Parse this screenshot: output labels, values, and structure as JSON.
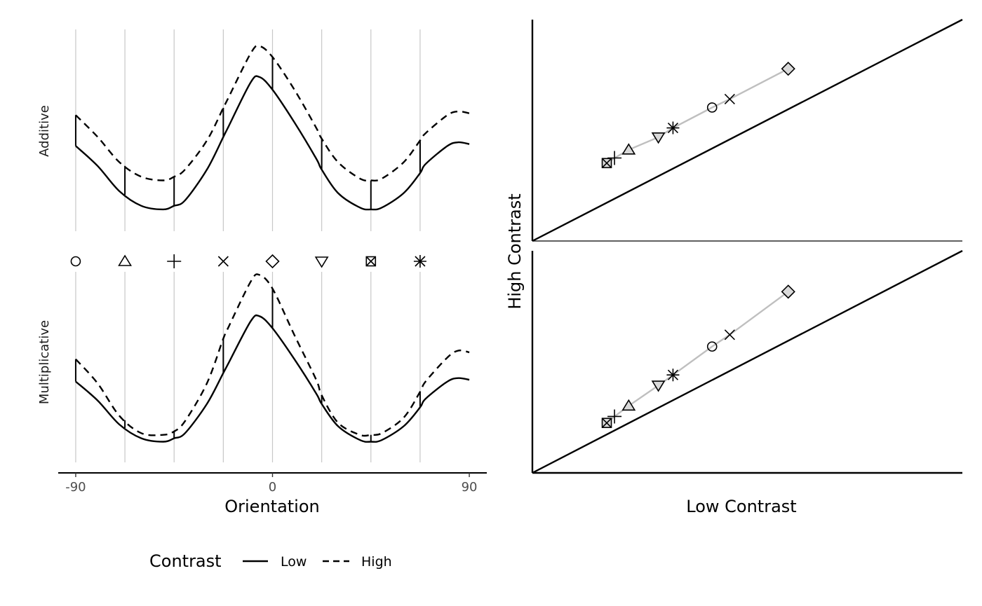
{
  "chart_data": [
    {
      "type": "line",
      "panels": [
        {
          "strip_label": "Additive",
          "series": [
            {
              "name": "Low",
              "linetype": "solid",
              "x": [
                -90,
                -80,
                -70,
                -60,
                -50,
                -45,
                -40,
                -30,
                -22.5,
                -20,
                -10,
                -6,
                0,
                10,
                20,
                22.5,
                30,
                40,
                45,
                50,
                60,
                67.5,
                70,
                80,
                85,
                90
              ],
              "y": [
                0.35,
                0.24,
                0.1,
                0.02,
                0.0,
                0.02,
                0.05,
                0.22,
                0.4,
                0.46,
                0.7,
                0.73,
                0.66,
                0.48,
                0.28,
                0.22,
                0.09,
                0.01,
                0.0,
                0.01,
                0.09,
                0.2,
                0.25,
                0.35,
                0.37,
                0.36
              ]
            },
            {
              "name": "High",
              "linetype": "dashed",
              "x": [
                -90,
                -80,
                -70,
                -60,
                -50,
                -45,
                -40,
                -30,
                -22.5,
                -20,
                -10,
                -6,
                0,
                10,
                20,
                22.5,
                30,
                40,
                45,
                50,
                60,
                67.5,
                70,
                80,
                85,
                90
              ],
              "y": [
                0.52,
                0.4,
                0.26,
                0.18,
                0.16,
                0.18,
                0.22,
                0.38,
                0.56,
                0.62,
                0.86,
                0.9,
                0.84,
                0.66,
                0.45,
                0.39,
                0.26,
                0.17,
                0.16,
                0.17,
                0.26,
                0.38,
                0.42,
                0.52,
                0.54,
                0.53
              ]
            }
          ],
          "stimulus_x": [
            -90,
            -67.5,
            -45,
            -22.5,
            0,
            22.5,
            45,
            67.5
          ]
        },
        {
          "strip_label": "Multiplicative",
          "series": [
            {
              "name": "Low",
              "linetype": "solid",
              "x": [
                -90,
                -80,
                -70,
                -60,
                -50,
                -45,
                -40,
                -30,
                -22.5,
                -20,
                -10,
                -6,
                0,
                10,
                20,
                22.5,
                30,
                40,
                45,
                50,
                60,
                67.5,
                70,
                80,
                85,
                90
              ],
              "y": [
                0.35,
                0.24,
                0.1,
                0.02,
                0.0,
                0.02,
                0.05,
                0.22,
                0.4,
                0.46,
                0.7,
                0.73,
                0.66,
                0.48,
                0.28,
                0.22,
                0.09,
                0.01,
                0.0,
                0.01,
                0.09,
                0.2,
                0.25,
                0.35,
                0.37,
                0.36
              ]
            },
            {
              "name": "High",
              "linetype": "dashed",
              "x": [
                -90,
                -80,
                -70,
                -60,
                -50,
                -45,
                -40,
                -30,
                -22.5,
                -20,
                -10,
                -6,
                0,
                10,
                20,
                22.5,
                30,
                40,
                45,
                50,
                60,
                67.5,
                70,
                80,
                85,
                90
              ],
              "y": [
                0.48,
                0.34,
                0.15,
                0.05,
                0.04,
                0.06,
                0.12,
                0.34,
                0.6,
                0.67,
                0.93,
                0.97,
                0.89,
                0.62,
                0.36,
                0.27,
                0.11,
                0.04,
                0.04,
                0.05,
                0.14,
                0.29,
                0.35,
                0.49,
                0.53,
                0.52
              ]
            }
          ],
          "stimulus_x": [
            -90,
            -67.5,
            -45,
            -22.5,
            0,
            22.5,
            45,
            67.5
          ]
        }
      ],
      "stimulus_shapes": [
        "circle",
        "triangle-up",
        "plus",
        "cross",
        "diamond",
        "triangle-down",
        "square-cross",
        "asterisk"
      ],
      "xlabel": "Orientation",
      "xticks": [
        -90,
        0,
        90
      ],
      "xlim": [
        -98,
        98
      ],
      "ylim": [
        -0.12,
        1.0
      ],
      "grid": "vertical lines at stimulus orientations",
      "legend": {
        "title": "Contrast",
        "entries": [
          {
            "label": "Low",
            "linetype": "solid"
          },
          {
            "label": "High",
            "linetype": "dashed"
          }
        ],
        "position": "bottom"
      }
    },
    {
      "type": "scatter",
      "xlabel": "Low Contrast",
      "ylabel": "High Contrast",
      "xlim": [
        0,
        1
      ],
      "ylim": [
        0,
        1
      ],
      "identity_line": true,
      "panels": [
        {
          "name": "Additive",
          "points": [
            {
              "shape": "circle",
              "x": 0.418,
              "y": 0.603
            },
            {
              "shape": "triangle-up",
              "x": 0.224,
              "y": 0.412
            },
            {
              "shape": "plus",
              "x": 0.191,
              "y": 0.375
            },
            {
              "shape": "cross",
              "x": 0.459,
              "y": 0.641
            },
            {
              "shape": "diamond",
              "x": 0.595,
              "y": 0.778
            },
            {
              "shape": "triangle-down",
              "x": 0.293,
              "y": 0.469
            },
            {
              "shape": "square-cross",
              "x": 0.173,
              "y": 0.352
            },
            {
              "shape": "asterisk",
              "x": 0.327,
              "y": 0.511
            }
          ]
        },
        {
          "name": "Multiplicative",
          "points": [
            {
              "shape": "circle",
              "x": 0.418,
              "y": 0.569
            },
            {
              "shape": "triangle-up",
              "x": 0.224,
              "y": 0.302
            },
            {
              "shape": "plus",
              "x": 0.191,
              "y": 0.254
            },
            {
              "shape": "cross",
              "x": 0.459,
              "y": 0.622
            },
            {
              "shape": "diamond",
              "x": 0.595,
              "y": 0.816
            },
            {
              "shape": "triangle-down",
              "x": 0.293,
              "y": 0.394
            },
            {
              "shape": "square-cross",
              "x": 0.173,
              "y": 0.225
            },
            {
              "shape": "asterisk",
              "x": 0.327,
              "y": 0.441
            }
          ]
        }
      ]
    }
  ],
  "colors": {
    "grid": "#c7c7c7",
    "path": "#bfbfbf",
    "ink": "#000000",
    "tick_text": "#4d4d4d"
  }
}
